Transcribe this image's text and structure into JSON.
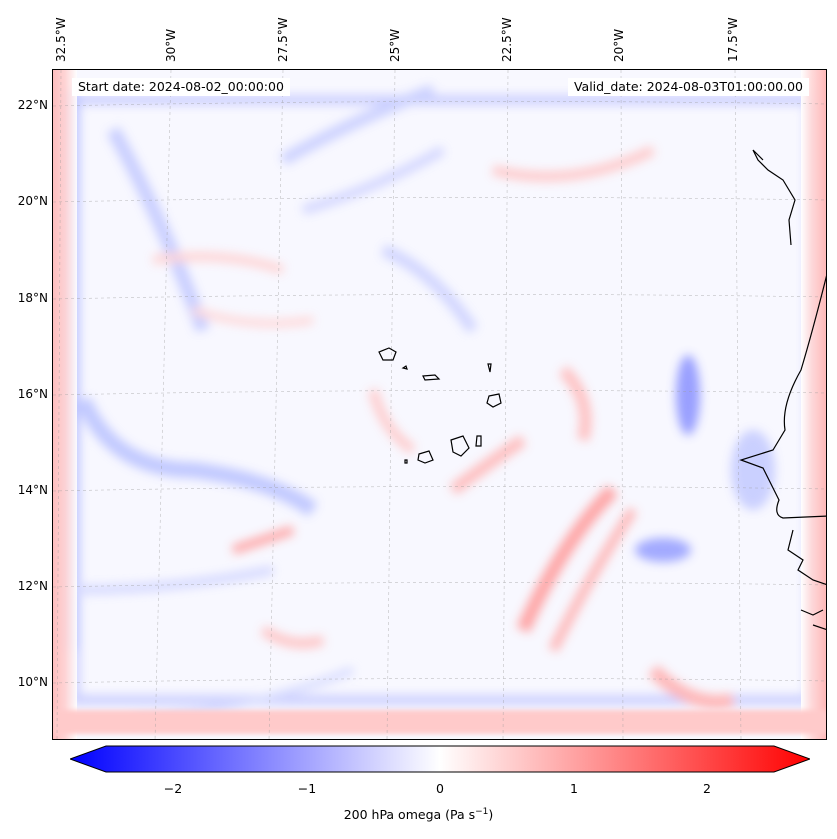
{
  "header": {
    "start_date": "Start date: 2024-08-02_00:00:00",
    "valid_date": "Valid_date: 2024-08-03T01:00:00.00"
  },
  "map": {
    "lon_labels": [
      "32.5°W",
      "30°W",
      "27.5°W",
      "25°W",
      "22.5°W",
      "20°W",
      "17.5°W"
    ],
    "lat_labels": [
      "22°N",
      "20°N",
      "18°N",
      "16°N",
      "14°N",
      "12°N",
      "10°N"
    ],
    "colormap": {
      "negative": "#0000ff",
      "zero": "#ffffff",
      "positive": "#ff0000"
    }
  },
  "colorbar": {
    "ticks": [
      "−2",
      "−1",
      "0",
      "1",
      "2"
    ],
    "label_main": "200 hPa omega (Pa s",
    "label_sup": "−1",
    "label_end": ")"
  }
}
